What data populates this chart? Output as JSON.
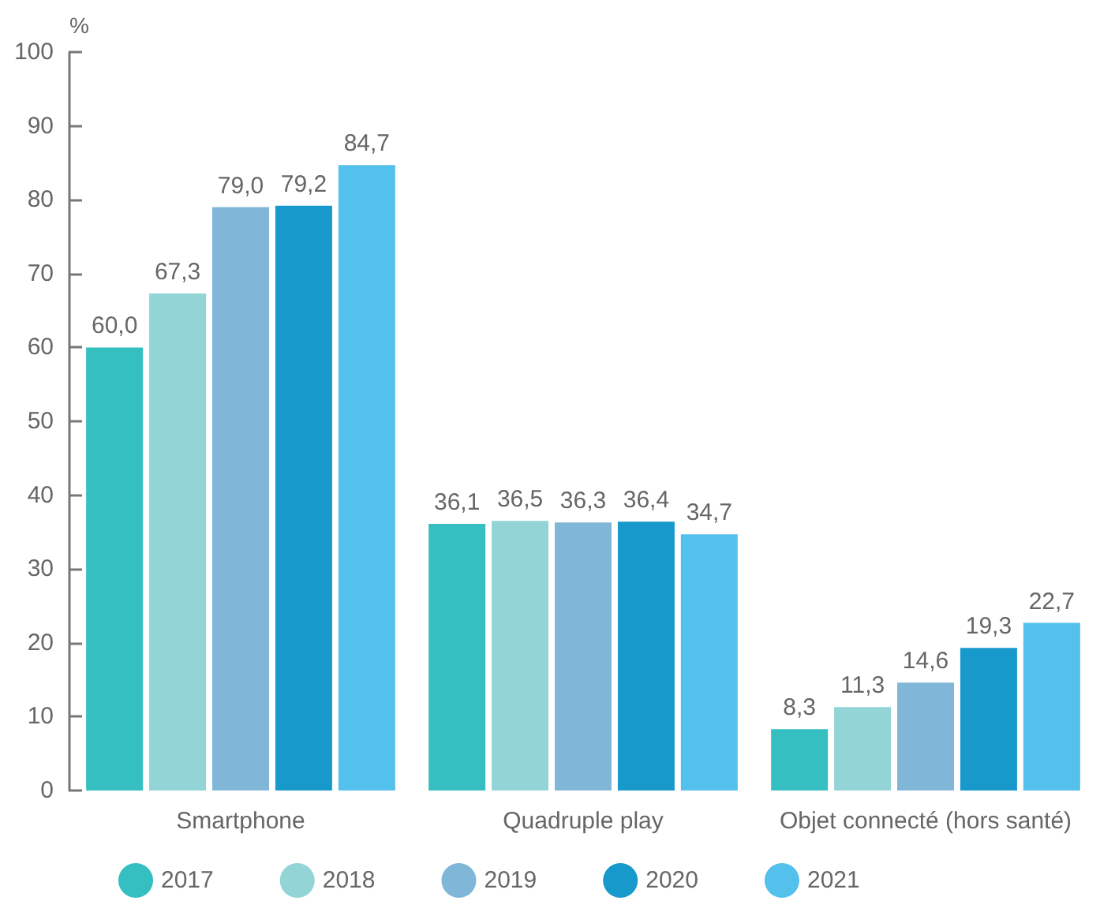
{
  "chart_data": {
    "type": "bar",
    "ylabel": "%",
    "categories": [
      "Smartphone",
      "Quadruple play",
      "Objet connecté (hors santé)"
    ],
    "series": [
      {
        "name": "2017",
        "color": "#35bfc0",
        "values": [
          60.0,
          36.1,
          8.3
        ],
        "value_labels": [
          "60,0",
          "36,1",
          "8,3"
        ]
      },
      {
        "name": "2018",
        "color": "#93d4d6",
        "values": [
          67.3,
          36.5,
          11.3
        ],
        "value_labels": [
          "67,3",
          "36,5",
          "11,3"
        ]
      },
      {
        "name": "2019",
        "color": "#80b7d9",
        "values": [
          79.0,
          36.3,
          14.6
        ],
        "value_labels": [
          "79,0",
          "36,3",
          "14,6"
        ]
      },
      {
        "name": "2020",
        "color": "#1899cb",
        "values": [
          79.2,
          36.4,
          19.3
        ],
        "value_labels": [
          "79,2",
          "36,4",
          "19,3"
        ]
      },
      {
        "name": "2021",
        "color": "#54c0ec",
        "values": [
          84.7,
          34.7,
          22.7
        ],
        "value_labels": [
          "84,7",
          "34,7",
          "22,7"
        ]
      }
    ],
    "ylim": [
      0,
      100
    ],
    "yticks": [
      0,
      10,
      20,
      30,
      40,
      50,
      60,
      70,
      80,
      90,
      100
    ],
    "legend": "bottom"
  }
}
